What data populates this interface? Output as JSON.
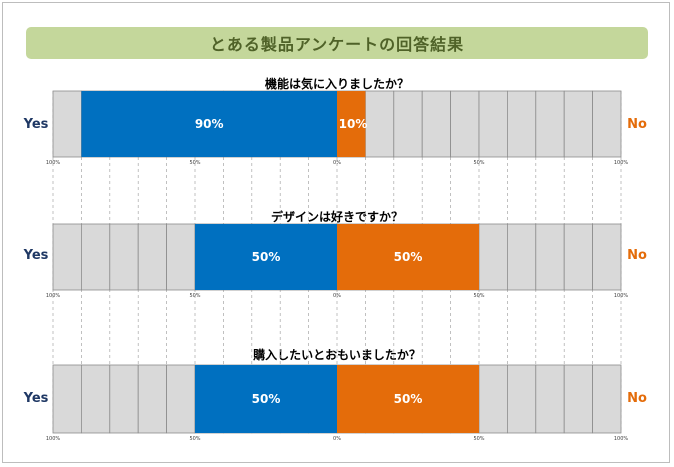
{
  "title": "とある製品アンケートの回答結果",
  "colors": {
    "yes": "#0070c0",
    "no": "#e46c0a",
    "cell": "#d9d9d9",
    "cell_border": "#8c8c8c",
    "banner": "#c4d79b",
    "banner_text": "#4f6228"
  },
  "chart_data": [
    {
      "type": "bar",
      "orientation": "horizontal-diverging",
      "title": "機能は気に入りましたか？",
      "yes_label": "Yes",
      "no_label": "No",
      "series": [
        {
          "name": "Yes",
          "values": [
            90
          ]
        },
        {
          "name": "No",
          "values": [
            10
          ]
        }
      ],
      "labels": {
        "yes": "90%",
        "no": "10%"
      },
      "ticks": [
        "100%",
        "50%",
        "0%",
        "50%",
        "100%"
      ],
      "xlim": [
        -100,
        100
      ],
      "grid": true
    },
    {
      "type": "bar",
      "orientation": "horizontal-diverging",
      "title": "デザインは好きですか？",
      "yes_label": "Yes",
      "no_label": "No",
      "series": [
        {
          "name": "Yes",
          "values": [
            50
          ]
        },
        {
          "name": "No",
          "values": [
            50
          ]
        }
      ],
      "labels": {
        "yes": "50%",
        "no": "50%"
      },
      "ticks": [
        "100%",
        "50%",
        "0%",
        "50%",
        "100%"
      ],
      "xlim": [
        -100,
        100
      ],
      "grid": true
    },
    {
      "type": "bar",
      "orientation": "horizontal-diverging",
      "title": "購入したいとおもいましたか？",
      "yes_label": "Yes",
      "no_label": "No",
      "series": [
        {
          "name": "Yes",
          "values": [
            50
          ]
        },
        {
          "name": "No",
          "values": [
            50
          ]
        }
      ],
      "labels": {
        "yes": "50%",
        "no": "50%"
      },
      "ticks": [
        "100%",
        "50%",
        "0%",
        "50%",
        "100%"
      ],
      "xlim": [
        -100,
        100
      ],
      "grid": true
    }
  ]
}
